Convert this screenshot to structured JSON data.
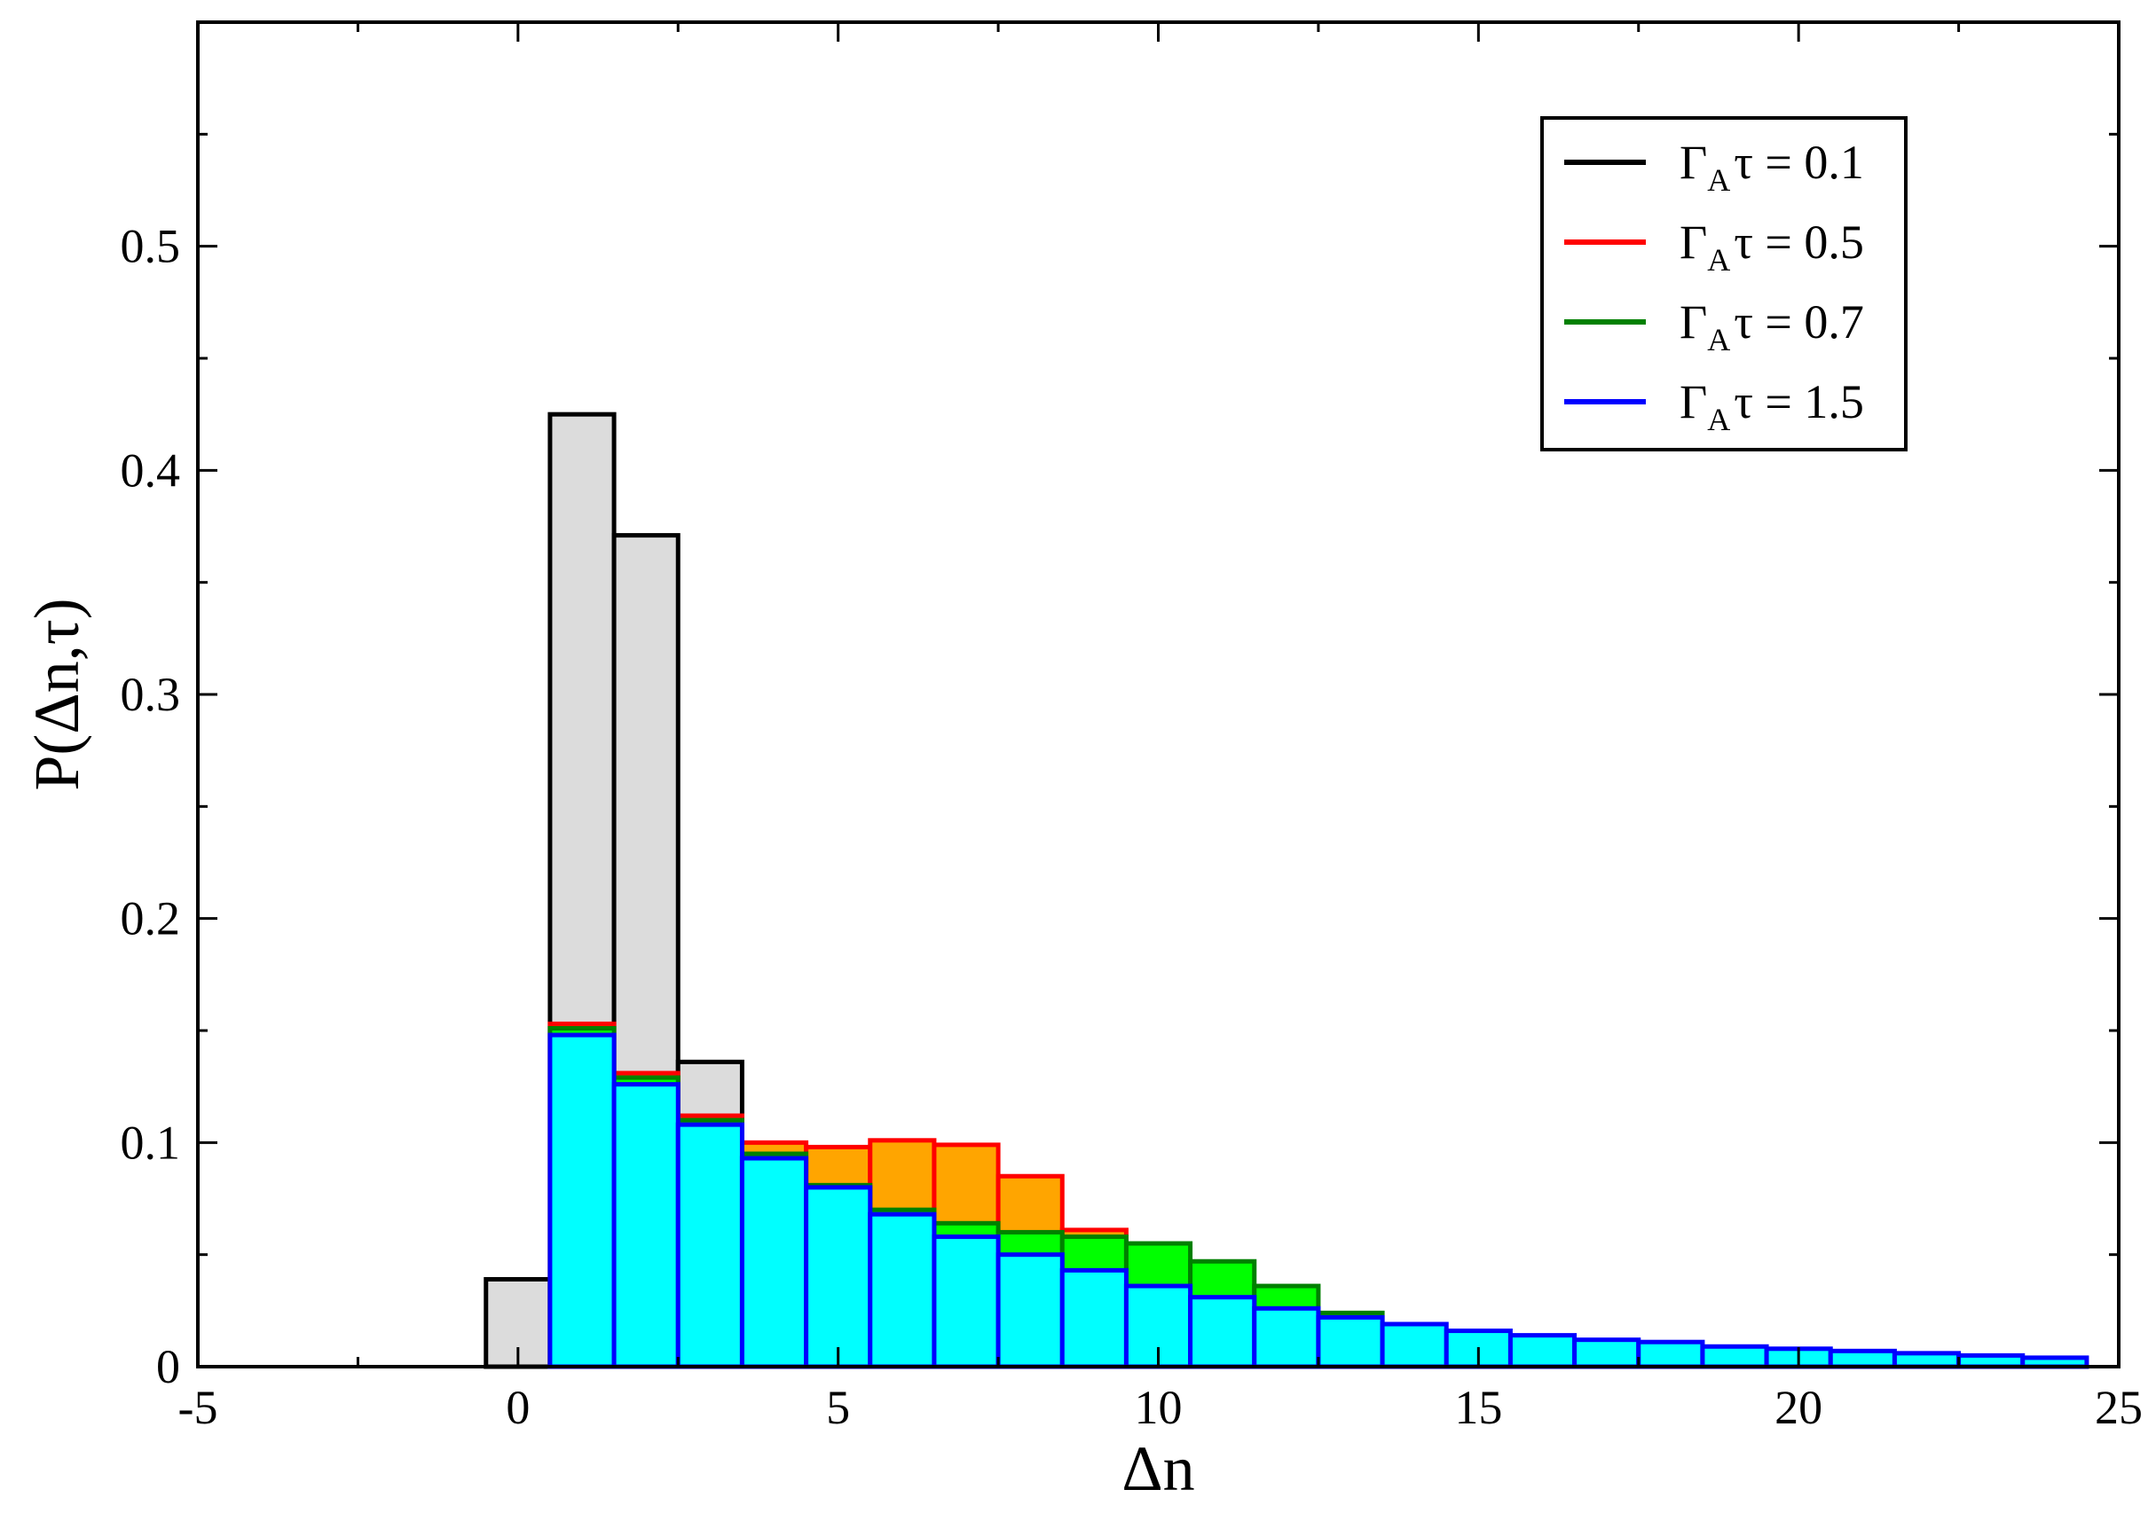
{
  "chart_data": {
    "type": "bar",
    "xlabel": "Δn",
    "ylabel": "P(Δn,τ)",
    "xlim": [
      -5,
      25
    ],
    "ylim": [
      0,
      0.6
    ],
    "x_ticks": [
      "-5",
      "0",
      "5",
      "10",
      "15",
      "20",
      "25"
    ],
    "y_ticks": [
      "0",
      "0.1",
      "0.2",
      "0.3",
      "0.4",
      "0.5"
    ],
    "grid": false,
    "legend_position": "top-right",
    "bin_width": 1,
    "x": [
      -4,
      -3,
      -2,
      -1,
      0,
      1,
      2,
      3,
      4,
      5,
      6,
      7,
      8,
      9,
      10,
      11,
      12,
      13,
      14,
      15,
      16,
      17,
      18,
      19,
      20,
      21,
      22,
      23,
      24
    ],
    "series": [
      {
        "name": "Γ_A τ = 0.1",
        "legend_main": "Γ",
        "legend_sub": "A",
        "legend_rest": "τ = 0.1",
        "stroke": "#000000",
        "fill": "#dcdcdc",
        "values": [
          0,
          0,
          0,
          0,
          0.039,
          0.425,
          0.371,
          0.136,
          0.021,
          0.006,
          0.001,
          0,
          0,
          0,
          0,
          0,
          0,
          0,
          0,
          0,
          0,
          0,
          0,
          0,
          0,
          0,
          0,
          0,
          0
        ]
      },
      {
        "name": "Γ_A τ = 0.5",
        "legend_main": "Γ",
        "legend_sub": "A",
        "legend_rest": "τ = 0.5",
        "stroke": "#ff0000",
        "fill": "#ffa500",
        "values": [
          0,
          0,
          0,
          0,
          0,
          0.153,
          0.131,
          0.112,
          0.1,
          0.098,
          0.101,
          0.099,
          0.085,
          0.061,
          0.038,
          0.02,
          0.009,
          0.004,
          0.001,
          0,
          0,
          0,
          0,
          0,
          0,
          0,
          0,
          0,
          0
        ]
      },
      {
        "name": "Γ_A τ = 0.7",
        "legend_main": "Γ",
        "legend_sub": "A",
        "legend_rest": "τ = 0.7",
        "stroke": "#008000",
        "fill": "#00ff00",
        "values": [
          0,
          0,
          0,
          0,
          0,
          0.151,
          0.129,
          0.11,
          0.095,
          0.081,
          0.07,
          0.064,
          0.06,
          0.058,
          0.055,
          0.047,
          0.036,
          0.024,
          0.014,
          0.008,
          0.005,
          0.003,
          0.002,
          0.001,
          0.001,
          0.001,
          0,
          0,
          0
        ]
      },
      {
        "name": "Γ_A τ = 1.5",
        "legend_main": "Γ",
        "legend_sub": "A",
        "legend_rest": "τ = 1.5",
        "stroke": "#0000ff",
        "fill": "#00ffff",
        "values": [
          0,
          0,
          0,
          0,
          0,
          0.148,
          0.126,
          0.108,
          0.093,
          0.08,
          0.068,
          0.058,
          0.05,
          0.043,
          0.036,
          0.031,
          0.026,
          0.022,
          0.019,
          0.016,
          0.014,
          0.012,
          0.011,
          0.009,
          0.008,
          0.007,
          0.006,
          0.005,
          0.004
        ]
      }
    ]
  }
}
